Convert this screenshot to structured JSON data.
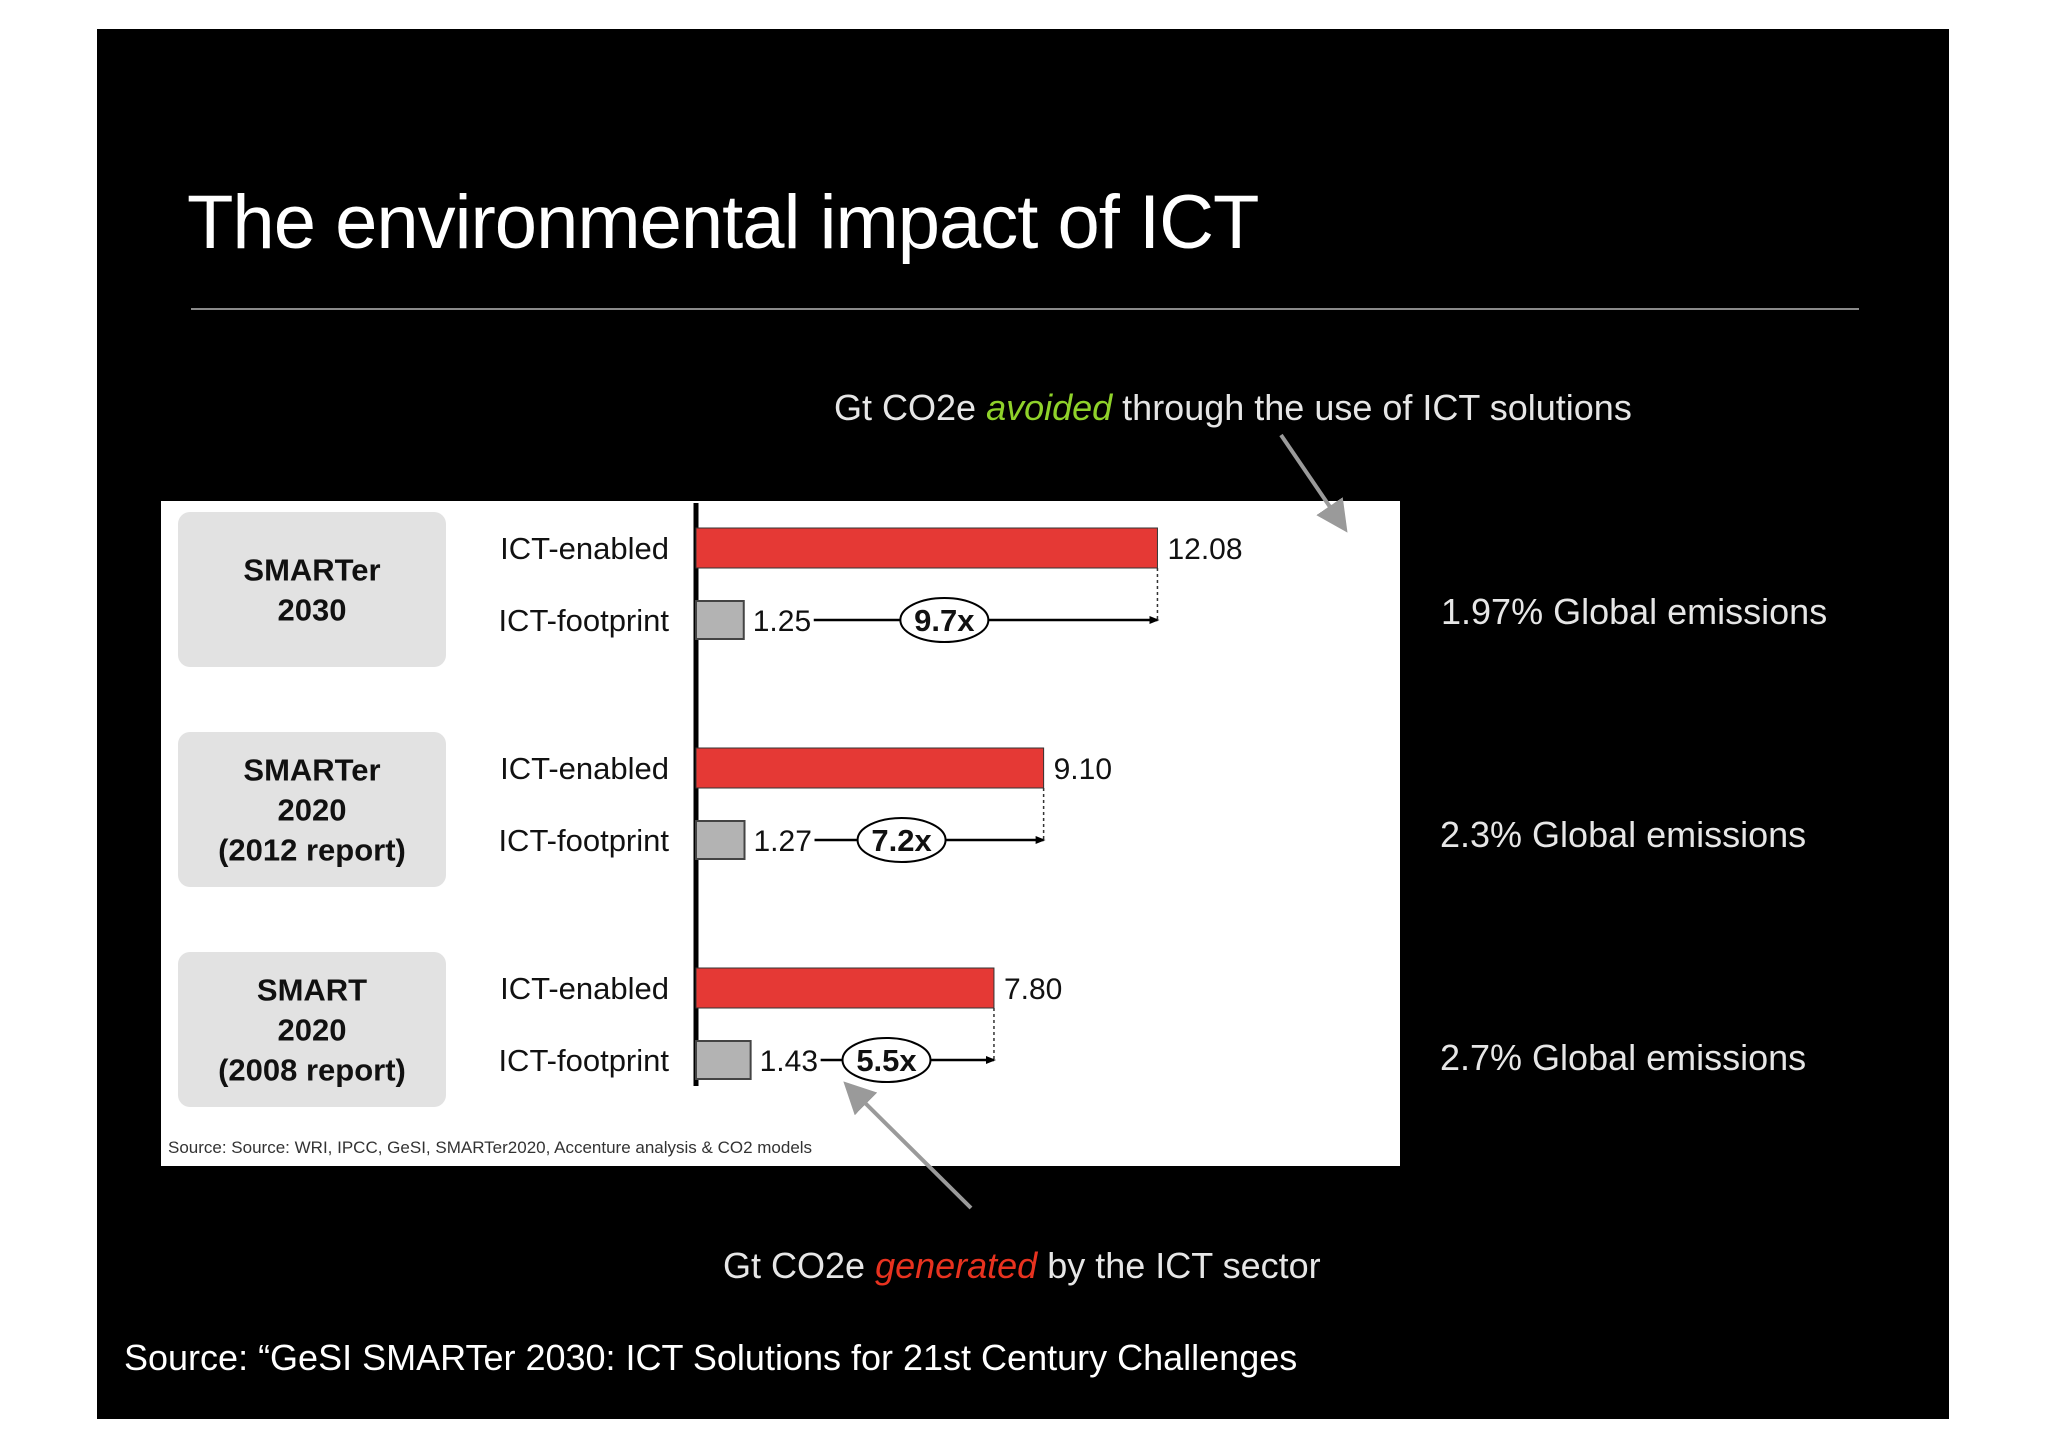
{
  "slide": {
    "title": "The environmental impact of ICT",
    "caption_top": {
      "before": "Gt CO2e ",
      "emph": "avoided",
      "after": " through the use of ICT solutions"
    },
    "caption_bottom": {
      "before": "Gt CO2e ",
      "emph": "generated",
      "after": " by the ICT sector"
    },
    "source": "Source: “GeSI SMARTer 2030: ICT Solutions for 21st Century Challenges",
    "global_emissions": [
      "1.97% Global emissions",
      "2.3% Global emissions",
      "2.7% Global emissions"
    ]
  },
  "colors": {
    "background": "#000000",
    "enabled_bar": "#e53935",
    "footprint_bar": "#b3b3b3",
    "avoided_accent": "#8fd22a",
    "generated_accent": "#e8321f",
    "group_box": "#e2e2e2"
  },
  "chart_data": {
    "type": "bar",
    "orientation": "horizontal",
    "source_note": "Source: Source: WRI, IPCC, GeSI, SMARTer2020, Accenture analysis & CO2 models",
    "series_labels": [
      "ICT-enabled",
      "ICT-footprint"
    ],
    "groups": [
      {
        "label": [
          "SMARTer",
          "2030"
        ],
        "enabled": 12.08,
        "footprint": 1.25,
        "enabled_text": "12.08",
        "footprint_text": "1.25",
        "ratio": "9.7x"
      },
      {
        "label": [
          "SMARTer",
          "2020",
          "(2012 report)"
        ],
        "enabled": 9.1,
        "footprint": 1.27,
        "enabled_text": "9.10",
        "footprint_text": "1.27",
        "ratio": "7.2x"
      },
      {
        "label": [
          "SMART",
          "2020",
          "(2008 report)"
        ],
        "enabled": 7.8,
        "footprint": 1.43,
        "enabled_text": "7.80",
        "footprint_text": "1.43",
        "ratio": "5.5x"
      }
    ],
    "xlim": [
      0,
      13
    ]
  }
}
